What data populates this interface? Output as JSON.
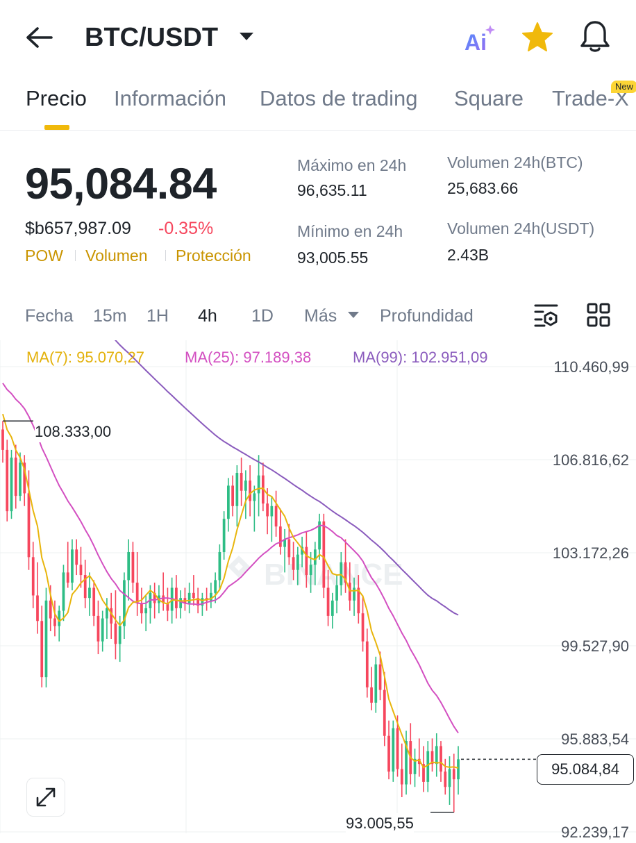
{
  "header": {
    "back_icon": "arrow-left-icon",
    "title": "BTC/USDT",
    "dropdown_icon": "caret-down-icon",
    "ai_label": "Ai",
    "star_icon": "star-icon",
    "bell_icon": "bell-icon",
    "accent": "#f0b90b"
  },
  "tabs": [
    {
      "label": "Precio",
      "active": true
    },
    {
      "label": "Información"
    },
    {
      "label": "Datos de trading"
    },
    {
      "label": "Square"
    },
    {
      "label": "Trade-X"
    }
  ],
  "new_badge": "New",
  "price": {
    "last": "95,084.84",
    "fiat": "$b657,987.09",
    "change": "-0.35%",
    "change_color": "#f6465d",
    "tags": [
      "POW",
      "Volumen",
      "Protección"
    ]
  },
  "stats": {
    "high_label": "Máximo en 24h",
    "high_value": "96,635.11",
    "low_label": "Mínimo en 24h",
    "low_value": "93,005.55",
    "vol_btc_label": "Volumen 24h(BTC)",
    "vol_btc_value": "25,683.66",
    "vol_usdt_label": "Volumen 24h(USDT)",
    "vol_usdt_value": "2.43B"
  },
  "timeframes": {
    "items": [
      "Fecha",
      "15m",
      "1H",
      "4h",
      "1D",
      "Más",
      "Profundidad"
    ],
    "active": "4h",
    "more_icon": "caret-down-icon",
    "indicator_icon": "indicator-settings-icon",
    "grid_icon": "grid-layout-icon"
  },
  "ma": {
    "ma7": "MA(7): 95.070,27",
    "ma25": "MA(25): 97.189,38",
    "ma99": "MA(99): 102.951,09",
    "ma7_color": "#e8b50c",
    "ma25_color": "#d34fc1",
    "ma99_color": "#8a5bbd"
  },
  "chart": {
    "y_ticks": [
      "110.460,99",
      "106.816,62",
      "103.172,26",
      "99.527,90",
      "95.883,54",
      "92.239,17"
    ],
    "current_price": "95.084,84",
    "high_annotation": "108.333,00",
    "low_annotation": "93.005,55",
    "watermark": "BINANCE",
    "up_color": "#2ebd85",
    "down_color": "#f6465d",
    "expand_icon": "expand-icon"
  },
  "chart_data": {
    "type": "candlestick",
    "interval": "4h",
    "y_ticks": [
      110460.99,
      106816.62,
      103172.26,
      99527.9,
      95883.54,
      92239.17
    ],
    "current_price": 95084.84,
    "high": 108333.0,
    "low": 93005.55,
    "ohlc": [
      [
        108000,
        108333,
        106700,
        107200
      ],
      [
        107200,
        107600,
        104400,
        104800
      ],
      [
        104800,
        107200,
        104500,
        106900
      ],
      [
        106900,
        107400,
        104900,
        105400
      ],
      [
        105400,
        107100,
        105200,
        106700
      ],
      [
        106700,
        107000,
        105000,
        105500
      ],
      [
        105500,
        106400,
        102500,
        103000
      ],
      [
        103000,
        103600,
        101000,
        101500
      ],
      [
        101500,
        102800,
        100000,
        100500
      ],
      [
        100500,
        101100,
        97900,
        98300
      ],
      [
        98300,
        101800,
        97900,
        101300
      ],
      [
        101300,
        101900,
        100100,
        100600
      ],
      [
        100600,
        101300,
        99900,
        100300
      ],
      [
        100300,
        101100,
        99700,
        100900
      ],
      [
        100900,
        102700,
        100500,
        102400
      ],
      [
        102400,
        103600,
        101800,
        102000
      ],
      [
        102000,
        103700,
        101700,
        103300
      ],
      [
        103300,
        103700,
        102300,
        102700
      ],
      [
        102700,
        103400,
        101800,
        102300
      ],
      [
        102300,
        102900,
        101000,
        101400
      ],
      [
        101400,
        102400,
        100700,
        101800
      ],
      [
        101800,
        102100,
        100300,
        100700
      ],
      [
        100700,
        101300,
        99200,
        99700
      ],
      [
        99700,
        100900,
        99300,
        100600
      ],
      [
        100600,
        101400,
        99800,
        101000
      ],
      [
        101000,
        101600,
        99800,
        100400
      ],
      [
        100400,
        101700,
        99000,
        99600
      ],
      [
        99600,
        100700,
        98900,
        100300
      ],
      [
        100300,
        102400,
        99800,
        102100
      ],
      [
        102100,
        103700,
        101300,
        103200
      ],
      [
        103200,
        103600,
        101600,
        102000
      ],
      [
        102000,
        103200,
        100700,
        101200
      ],
      [
        101200,
        101800,
        100400,
        100800
      ],
      [
        100800,
        101500,
        100100,
        101000
      ],
      [
        101000,
        101900,
        100400,
        101600
      ],
      [
        101600,
        102000,
        100600,
        101200
      ],
      [
        101200,
        101900,
        100800,
        101500
      ],
      [
        101500,
        102400,
        100900,
        101200
      ],
      [
        101200,
        101800,
        100500,
        100900
      ],
      [
        100900,
        102200,
        100400,
        101800
      ],
      [
        101800,
        102300,
        100600,
        101000
      ],
      [
        101000,
        101700,
        100600,
        101400
      ],
      [
        101400,
        101800,
        100900,
        101200
      ],
      [
        101200,
        102000,
        100800,
        101600
      ],
      [
        101600,
        102300,
        101100,
        101400
      ],
      [
        101400,
        101800,
        100800,
        101100
      ],
      [
        101100,
        101600,
        100700,
        101400
      ],
      [
        101400,
        101800,
        100900,
        101300
      ],
      [
        101300,
        102000,
        101000,
        101600
      ],
      [
        101600,
        102400,
        101200,
        102100
      ],
      [
        102100,
        103500,
        101700,
        103200
      ],
      [
        103200,
        104800,
        102900,
        104500
      ],
      [
        104500,
        106100,
        104000,
        105800
      ],
      [
        105800,
        106200,
        104600,
        105000
      ],
      [
        105000,
        106600,
        104200,
        106300
      ],
      [
        106300,
        106900,
        105000,
        105600
      ],
      [
        105600,
        106400,
        104500,
        106000
      ],
      [
        106000,
        106600,
        104600,
        105200
      ],
      [
        105200,
        105800,
        104000,
        105500
      ],
      [
        105500,
        107000,
        104600,
        106200
      ],
      [
        106200,
        106700,
        104800,
        105100
      ],
      [
        105100,
        105700,
        103900,
        104600
      ],
      [
        104600,
        105400,
        103600,
        105000
      ],
      [
        105000,
        105600,
        103800,
        104200
      ],
      [
        104200,
        104900,
        103100,
        103400
      ],
      [
        103400,
        104100,
        102400,
        103700
      ],
      [
        103700,
        104300,
        102700,
        103000
      ],
      [
        103000,
        103600,
        102100,
        102500
      ],
      [
        102500,
        103400,
        101900,
        103100
      ],
      [
        103100,
        103800,
        102600,
        103400
      ],
      [
        103400,
        104000,
        101800,
        102300
      ],
      [
        102300,
        103200,
        101600,
        102700
      ],
      [
        102700,
        103600,
        101900,
        103300
      ],
      [
        103300,
        104700,
        102900,
        104400
      ],
      [
        104400,
        104700,
        101400,
        101800
      ],
      [
        101800,
        102500,
        100300,
        100700
      ],
      [
        100700,
        101600,
        100200,
        101300
      ],
      [
        101300,
        102300,
        100800,
        101900
      ],
      [
        101900,
        103200,
        101500,
        102800
      ],
      [
        102800,
        103700,
        101600,
        102000
      ],
      [
        102000,
        102800,
        100900,
        101300
      ],
      [
        101300,
        102200,
        100700,
        101800
      ],
      [
        101800,
        102300,
        100400,
        100800
      ],
      [
        100800,
        101500,
        99300,
        99700
      ],
      [
        99700,
        100200,
        97500,
        97900
      ],
      [
        97900,
        98700,
        97000,
        97300
      ],
      [
        97300,
        99100,
        96900,
        98800
      ],
      [
        98800,
        99300,
        97400,
        97800
      ],
      [
        97800,
        98500,
        95600,
        96000
      ],
      [
        96000,
        96600,
        94300,
        94600
      ],
      [
        94600,
        96600,
        94200,
        96300
      ],
      [
        96300,
        96800,
        94400,
        94700
      ],
      [
        94700,
        95700,
        93600,
        94100
      ],
      [
        94100,
        96200,
        93700,
        95800
      ],
      [
        95800,
        96500,
        94100,
        94500
      ],
      [
        94500,
        95500,
        94000,
        95100
      ],
      [
        95100,
        95900,
        94400,
        94900
      ],
      [
        94900,
        95600,
        93800,
        94200
      ],
      [
        94200,
        95800,
        93800,
        95400
      ],
      [
        95400,
        95900,
        94600,
        94900
      ],
      [
        94900,
        96100,
        94400,
        95600
      ],
      [
        95600,
        95800,
        94200,
        94600
      ],
      [
        94600,
        95100,
        93700,
        94000
      ],
      [
        94000,
        95200,
        93300,
        94700
      ],
      [
        94700,
        95300,
        93005.55,
        94300
      ],
      [
        94300,
        95600,
        93700,
        95084.84
      ]
    ]
  }
}
